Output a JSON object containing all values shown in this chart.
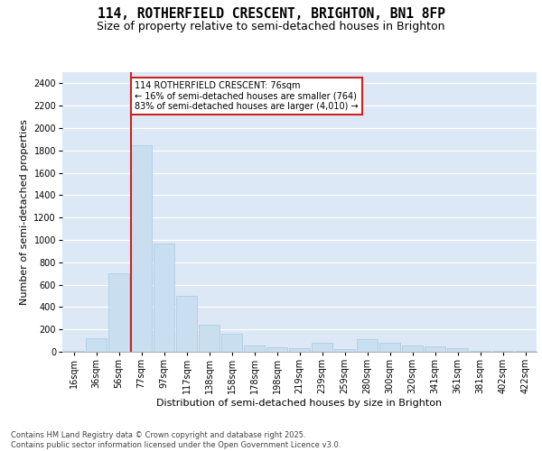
{
  "title_line1": "114, ROTHERFIELD CRESCENT, BRIGHTON, BN1 8FP",
  "title_line2": "Size of property relative to semi-detached houses in Brighton",
  "xlabel": "Distribution of semi-detached houses by size in Brighton",
  "ylabel": "Number of semi-detached properties",
  "categories": [
    "16sqm",
    "36sqm",
    "56sqm",
    "77sqm",
    "97sqm",
    "117sqm",
    "138sqm",
    "158sqm",
    "178sqm",
    "198sqm",
    "219sqm",
    "239sqm",
    "259sqm",
    "280sqm",
    "300sqm",
    "320sqm",
    "341sqm",
    "361sqm",
    "381sqm",
    "402sqm",
    "422sqm"
  ],
  "values": [
    10,
    120,
    700,
    1850,
    970,
    500,
    240,
    160,
    60,
    40,
    30,
    80,
    25,
    110,
    80,
    60,
    50,
    30,
    10,
    5,
    5
  ],
  "bar_color": "#c9dff0",
  "bar_edge_color": "#a8c8e0",
  "grid_color": "#cdd8e8",
  "background_color": "#dce8f5",
  "vline_color": "#cc2222",
  "vline_index": 3,
  "annotation_text": "114 ROTHERFIELD CRESCENT: 76sqm\n← 16% of semi-detached houses are smaller (764)\n83% of semi-detached houses are larger (4,010) →",
  "annotation_box_color": "#cc2222",
  "ylim": [
    0,
    2500
  ],
  "yticks": [
    0,
    200,
    400,
    600,
    800,
    1000,
    1200,
    1400,
    1600,
    1800,
    2000,
    2200,
    2400
  ],
  "footnote": "Contains HM Land Registry data © Crown copyright and database right 2025.\nContains public sector information licensed under the Open Government Licence v3.0.",
  "title_fontsize": 10.5,
  "subtitle_fontsize": 9,
  "axis_label_fontsize": 8,
  "tick_fontsize": 7,
  "annotation_fontsize": 7,
  "footnote_fontsize": 6
}
